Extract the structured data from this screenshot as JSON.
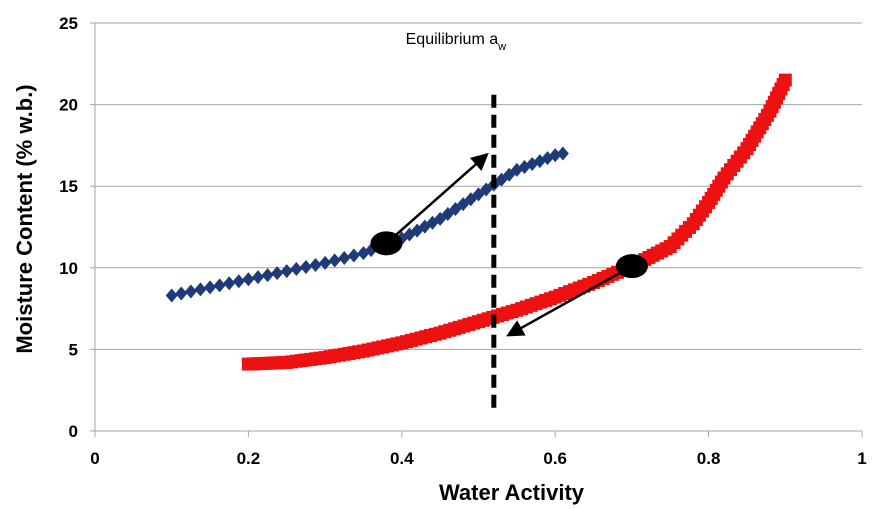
{
  "chart_data": {
    "type": "scatter",
    "xlabel": "Water Activity",
    "ylabel": "Moisture Content (% w.b.)",
    "xlim": [
      0,
      1
    ],
    "ylim": [
      0,
      25
    ],
    "x_ticks": [
      "0",
      "0.2",
      "0.4",
      "0.6",
      "0.8",
      "1"
    ],
    "y_ticks": [
      "0",
      "5",
      "10",
      "15",
      "20",
      "25"
    ],
    "grid": "horizontal",
    "series": [
      {
        "marker": "diamond",
        "color": "#1f3a78",
        "points": [
          [
            0.1,
            8.3
          ],
          [
            0.15,
            8.8
          ],
          [
            0.2,
            9.3
          ],
          [
            0.25,
            9.8
          ],
          [
            0.3,
            10.3
          ],
          [
            0.35,
            10.9
          ],
          [
            0.4,
            11.8
          ],
          [
            0.45,
            13.0
          ],
          [
            0.5,
            14.5
          ],
          [
            0.55,
            16.0
          ],
          [
            0.6,
            16.9
          ],
          [
            0.61,
            17.0
          ]
        ]
      },
      {
        "marker": "square",
        "color": "#ee1111",
        "points": [
          [
            0.2,
            4.1
          ],
          [
            0.25,
            4.2
          ],
          [
            0.3,
            4.5
          ],
          [
            0.35,
            4.9
          ],
          [
            0.4,
            5.4
          ],
          [
            0.45,
            6.0
          ],
          [
            0.5,
            6.7
          ],
          [
            0.55,
            7.4
          ],
          [
            0.6,
            8.2
          ],
          [
            0.65,
            9.1
          ],
          [
            0.7,
            10.1
          ],
          [
            0.75,
            11.3
          ],
          [
            0.78,
            12.7
          ],
          [
            0.8,
            14.0
          ],
          [
            0.82,
            15.5
          ],
          [
            0.85,
            17.3
          ],
          [
            0.88,
            19.6
          ],
          [
            0.9,
            21.5
          ]
        ]
      }
    ],
    "vline": {
      "x": 0.52,
      "y_range": [
        1.3,
        20.6
      ],
      "style": "dashed"
    },
    "annotation": {
      "text": "Equilibrium a",
      "subscript": "w",
      "x": 0.405,
      "y": 23.7
    },
    "highlight_points": [
      [
        0.38,
        11.5
      ],
      [
        0.7,
        10.1
      ]
    ],
    "arrows": [
      {
        "from": [
          0.38,
          11.5
        ],
        "to": [
          0.51,
          16.9
        ]
      },
      {
        "from": [
          0.7,
          10.1
        ],
        "to": [
          0.54,
          5.9
        ]
      }
    ]
  }
}
